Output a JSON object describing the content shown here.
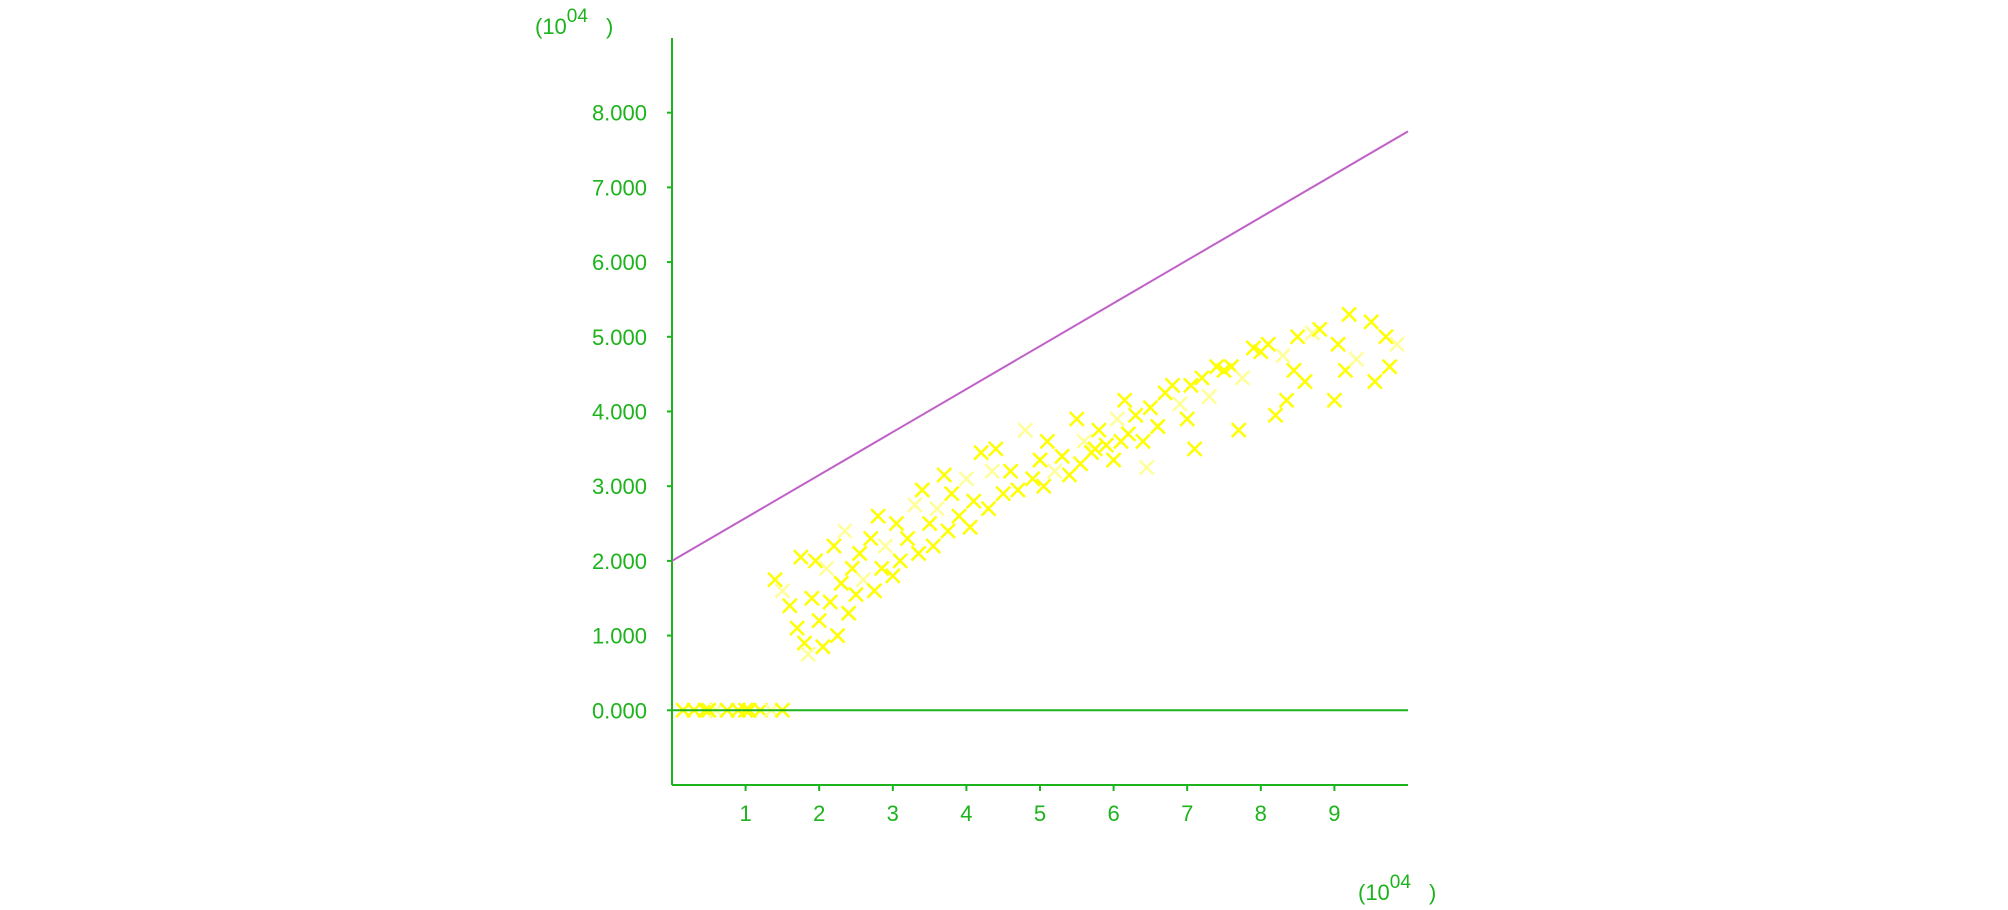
{
  "chart_data": {
    "type": "scatter",
    "title": "",
    "xlabel": "",
    "ylabel": "",
    "x_multiplier": {
      "base": "(10",
      "exp": "04",
      "close": ")"
    },
    "y_multiplier": {
      "base": "(10",
      "exp": "04",
      "close": ")"
    },
    "xlim": [
      0,
      10
    ],
    "ylim": [
      -1,
      9
    ],
    "x_ticks": [
      "1",
      "2",
      "3",
      "4",
      "5",
      "6",
      "7",
      "8",
      "9"
    ],
    "y_ticks": [
      "0.000",
      "1.000",
      "2.000",
      "3.000",
      "4.000",
      "5.000",
      "6.000",
      "7.000",
      "8.000"
    ],
    "grid": false,
    "colors": {
      "axis": "#1db31d",
      "points": "#ffff00",
      "points_light": "#ffff99",
      "line": "#c060c8"
    },
    "lines": [
      {
        "points": [
          [
            0,
            2.0
          ],
          [
            10,
            7.75
          ]
        ],
        "color": "#c060c8"
      },
      {
        "points": [
          [
            0,
            0
          ],
          [
            10,
            0
          ]
        ],
        "color": "#1db31d"
      }
    ],
    "points": [
      [
        0.15,
        0
      ],
      [
        0.3,
        0
      ],
      [
        0.45,
        0
      ],
      [
        0.6,
        0
      ],
      [
        0.75,
        0
      ],
      [
        0.9,
        0
      ],
      [
        1.05,
        0
      ],
      [
        1.2,
        0
      ],
      [
        1.35,
        0
      ],
      [
        1.5,
        0
      ],
      [
        0.5,
        0
      ],
      [
        1.0,
        0
      ],
      [
        1.4,
        1.75
      ],
      [
        1.5,
        1.6
      ],
      [
        1.6,
        1.4
      ],
      [
        1.7,
        1.1
      ],
      [
        1.75,
        2.05
      ],
      [
        1.8,
        0.9
      ],
      [
        1.85,
        0.75
      ],
      [
        1.9,
        1.5
      ],
      [
        1.95,
        2.0
      ],
      [
        2.0,
        1.2
      ],
      [
        2.05,
        0.85
      ],
      [
        2.1,
        1.9
      ],
      [
        2.15,
        1.45
      ],
      [
        2.2,
        2.2
      ],
      [
        2.25,
        1.0
      ],
      [
        2.3,
        1.7
      ],
      [
        2.35,
        2.4
      ],
      [
        2.4,
        1.3
      ],
      [
        2.45,
        1.9
      ],
      [
        2.5,
        1.55
      ],
      [
        2.55,
        2.1
      ],
      [
        2.6,
        1.75
      ],
      [
        2.7,
        2.3
      ],
      [
        2.75,
        1.6
      ],
      [
        2.8,
        2.6
      ],
      [
        2.85,
        1.9
      ],
      [
        2.9,
        2.2
      ],
      [
        3.0,
        1.8
      ],
      [
        3.05,
        2.5
      ],
      [
        3.1,
        2.0
      ],
      [
        3.2,
        2.3
      ],
      [
        3.3,
        2.75
      ],
      [
        3.35,
        2.1
      ],
      [
        3.4,
        2.95
      ],
      [
        3.5,
        2.5
      ],
      [
        3.55,
        2.2
      ],
      [
        3.6,
        2.7
      ],
      [
        3.7,
        3.15
      ],
      [
        3.75,
        2.4
      ],
      [
        3.8,
        2.9
      ],
      [
        3.9,
        2.6
      ],
      [
        4.0,
        3.1
      ],
      [
        4.05,
        2.45
      ],
      [
        4.1,
        2.8
      ],
      [
        4.2,
        3.45
      ],
      [
        4.3,
        2.7
      ],
      [
        4.35,
        3.2
      ],
      [
        4.4,
        3.5
      ],
      [
        4.5,
        2.9
      ],
      [
        4.6,
        3.2
      ],
      [
        4.7,
        2.95
      ],
      [
        4.8,
        3.75
      ],
      [
        4.9,
        3.1
      ],
      [
        5.0,
        3.35
      ],
      [
        5.05,
        3.0
      ],
      [
        5.1,
        3.6
      ],
      [
        5.2,
        3.2
      ],
      [
        5.3,
        3.4
      ],
      [
        5.4,
        3.15
      ],
      [
        5.5,
        3.9
      ],
      [
        5.55,
        3.3
      ],
      [
        5.6,
        3.6
      ],
      [
        5.7,
        3.45
      ],
      [
        5.8,
        3.75
      ],
      [
        5.9,
        3.55
      ],
      [
        6.0,
        3.35
      ],
      [
        6.05,
        3.9
      ],
      [
        6.15,
        4.15
      ],
      [
        6.2,
        3.7
      ],
      [
        6.3,
        3.95
      ],
      [
        6.4,
        3.6
      ],
      [
        6.45,
        3.25
      ],
      [
        6.5,
        4.05
      ],
      [
        6.6,
        3.8
      ],
      [
        6.7,
        4.25
      ],
      [
        6.8,
        4.35
      ],
      [
        6.9,
        4.1
      ],
      [
        7.0,
        3.9
      ],
      [
        7.05,
        4.35
      ],
      [
        7.1,
        3.5
      ],
      [
        7.2,
        4.45
      ],
      [
        7.3,
        4.2
      ],
      [
        7.4,
        4.6
      ],
      [
        7.5,
        4.55
      ],
      [
        7.6,
        4.6
      ],
      [
        7.7,
        3.75
      ],
      [
        7.75,
        4.45
      ],
      [
        7.9,
        4.85
      ],
      [
        8.0,
        4.8
      ],
      [
        8.1,
        4.9
      ],
      [
        8.2,
        3.95
      ],
      [
        8.3,
        4.75
      ],
      [
        8.35,
        4.15
      ],
      [
        8.45,
        4.55
      ],
      [
        8.5,
        5.0
      ],
      [
        8.6,
        4.4
      ],
      [
        8.7,
        5.05
      ],
      [
        9.0,
        4.15
      ],
      [
        9.05,
        4.9
      ],
      [
        9.15,
        4.55
      ],
      [
        9.2,
        5.3
      ],
      [
        9.3,
        4.7
      ],
      [
        9.5,
        5.2
      ],
      [
        9.55,
        4.4
      ],
      [
        9.7,
        5.0
      ],
      [
        9.75,
        4.6
      ],
      [
        9.85,
        4.9
      ],
      [
        8.8,
        5.1
      ],
      [
        6.1,
        3.6
      ],
      [
        5.75,
        3.5
      ]
    ]
  }
}
